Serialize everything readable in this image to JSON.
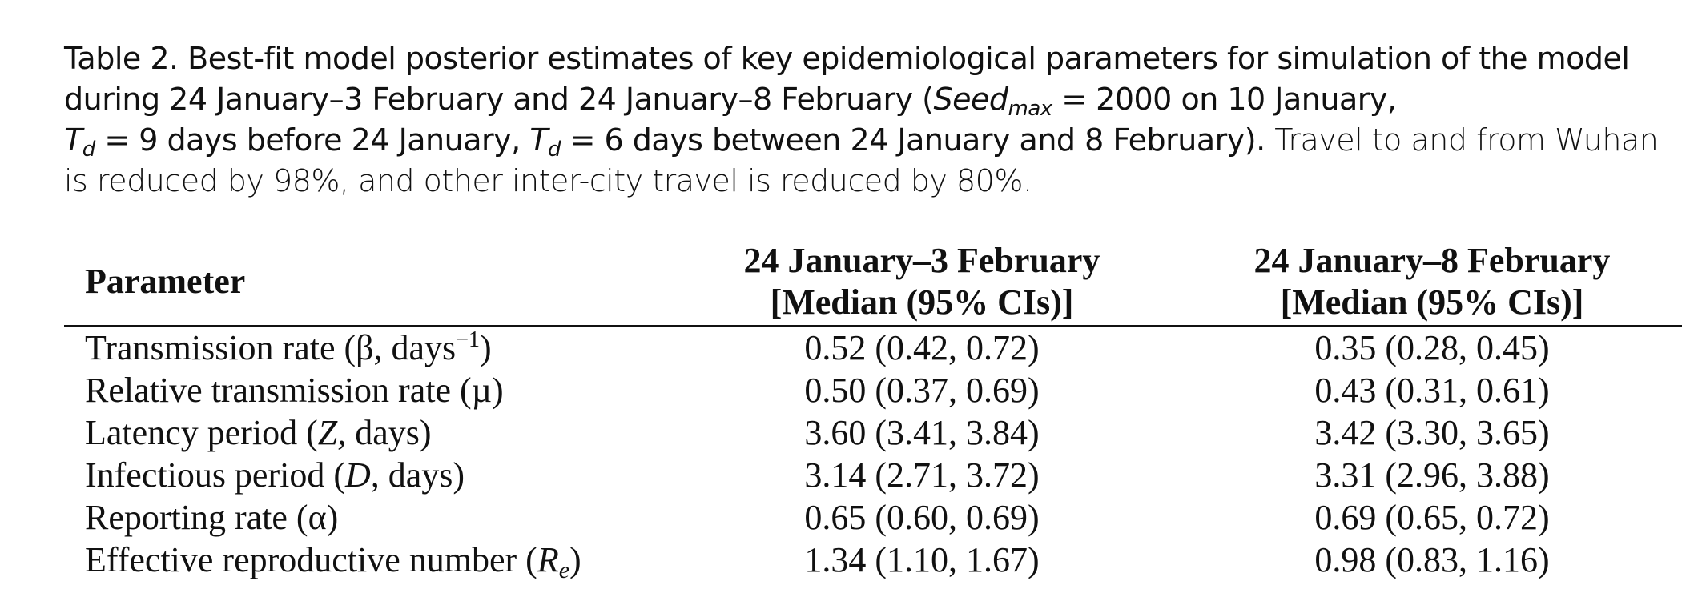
{
  "caption": {
    "prefix": "Table 2. Best-fit model posterior estimates of key epidemiological parameters for simulation of the model during 24 January–3 February and 24 January–8 February (",
    "seed_symbol": "Seed",
    "seed_subscript": "max",
    "seed_value": " = 2000 on 10 January,",
    "td_symbol": "T",
    "td_subscript": "d",
    "td1_value": " = 9 days before 24 January, ",
    "td2_value": " = 6 days between 24 January and 8 February).",
    "suffix": " Travel to and from Wuhan is reduced by 98%, and other inter-city travel is reduced by 80%."
  },
  "table": {
    "headers": {
      "parameter": "Parameter",
      "col1_line1": "24 January–3 February",
      "col1_line2": "[Median (95% CIs)]",
      "col2_line1": "24 January–8 February",
      "col2_line2": "[Median (95% CIs)]"
    },
    "rows": [
      {
        "pre": "Transmission rate (β, days",
        "sup": "−1",
        "post": ")",
        "v1": "0.52 (0.42, 0.72)",
        "v2": "0.35 (0.28, 0.45)"
      },
      {
        "pre": "Relative transmission rate (µ)",
        "v1": "0.50 (0.37, 0.69)",
        "v2": "0.43 (0.31, 0.61)"
      },
      {
        "pre": "Latency period (",
        "ital": "Z,",
        "post": " days)",
        "v1": "3.60 (3.41, 3.84)",
        "v2": "3.42 (3.30, 3.65)"
      },
      {
        "pre": "Infectious period (",
        "ital": "D,",
        "post": " days)",
        "v1": "3.14 (2.71, 3.72)",
        "v2": "3.31 (2.96, 3.88)"
      },
      {
        "pre": "Reporting rate (α)",
        "v1": "0.65 (0.60, 0.69)",
        "v2": "0.69 (0.65, 0.72)"
      },
      {
        "pre": "Effective reproductive number (",
        "ital": "R",
        "sub": "e",
        "post": ")",
        "v1": "1.34 (1.10, 1.67)",
        "v2": "0.98 (0.83, 1.16)"
      }
    ]
  }
}
